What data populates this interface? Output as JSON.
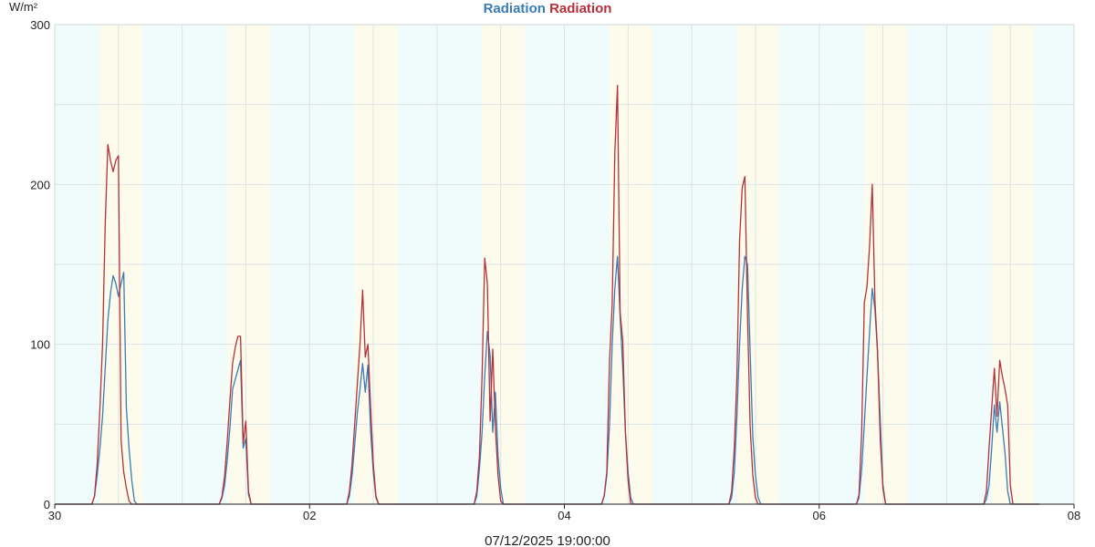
{
  "chart_data": {
    "type": "line",
    "title_parts": [
      {
        "text": "Radiation",
        "color": "#3b7bb5"
      },
      {
        "text": "Radiation",
        "color": "#b5313a"
      }
    ],
    "y_unit": "W/m²",
    "ylim": [
      0,
      300
    ],
    "y_ticks": [
      "0",
      "100",
      "200",
      "300"
    ],
    "x_ticks": [
      {
        "label": "30",
        "hour": 0
      },
      {
        "label": "02",
        "hour": 48
      },
      {
        "label": "04",
        "hour": 96
      },
      {
        "label": "06",
        "hour": 144
      },
      {
        "label": "08",
        "hour": 192
      }
    ],
    "xlim_hours": [
      0,
      192
    ],
    "footer_timestamp": "07/12/2025 19:00:00",
    "day_periods": [
      [
        17,
        33
      ],
      [
        65,
        81
      ],
      [
        113,
        129
      ],
      [
        161,
        177
      ],
      [
        209,
        225
      ],
      [
        257,
        273
      ],
      [
        305,
        321
      ],
      [
        353,
        369
      ]
    ],
    "grid": true,
    "series": [
      {
        "color": "#3b7bb5",
        "points": [
          [
            0,
            0
          ],
          [
            14,
            0
          ],
          [
            15,
            5
          ],
          [
            16,
            18
          ],
          [
            17,
            35
          ],
          [
            18,
            55
          ],
          [
            19,
            85
          ],
          [
            20,
            115
          ],
          [
            21,
            132
          ],
          [
            22,
            143
          ],
          [
            23,
            138
          ],
          [
            24,
            130
          ],
          [
            25,
            138
          ],
          [
            26,
            145
          ],
          [
            27,
            60
          ],
          [
            28,
            35
          ],
          [
            29,
            15
          ],
          [
            30,
            2
          ],
          [
            31,
            0
          ],
          [
            62,
            0
          ],
          [
            63,
            4
          ],
          [
            64,
            12
          ],
          [
            65,
            28
          ],
          [
            66,
            48
          ],
          [
            67,
            72
          ],
          [
            68,
            78
          ],
          [
            69,
            84
          ],
          [
            70,
            90
          ],
          [
            71,
            35
          ],
          [
            72,
            41
          ],
          [
            73,
            6
          ],
          [
            74,
            0
          ],
          [
            110,
            0
          ],
          [
            111,
            5
          ],
          [
            112,
            18
          ],
          [
            113,
            37
          ],
          [
            114,
            57
          ],
          [
            115,
            72
          ],
          [
            116,
            88
          ],
          [
            117,
            70
          ],
          [
            118,
            87
          ],
          [
            119,
            45
          ],
          [
            120,
            20
          ],
          [
            121,
            4
          ],
          [
            122,
            0
          ],
          [
            158,
            0
          ],
          [
            159,
            5
          ],
          [
            160,
            22
          ],
          [
            161,
            45
          ],
          [
            162,
            80
          ],
          [
            163,
            108
          ],
          [
            164,
            93
          ],
          [
            165,
            45
          ],
          [
            166,
            70
          ],
          [
            167,
            30
          ],
          [
            168,
            10
          ],
          [
            169,
            0
          ],
          [
            206,
            0
          ],
          [
            207,
            5
          ],
          [
            208,
            18
          ],
          [
            209,
            50
          ],
          [
            210,
            100
          ],
          [
            211,
            135
          ],
          [
            212,
            155
          ],
          [
            213,
            117
          ],
          [
            214,
            85
          ],
          [
            215,
            45
          ],
          [
            216,
            20
          ],
          [
            217,
            4
          ],
          [
            218,
            0
          ],
          [
            254,
            0
          ],
          [
            255,
            4
          ],
          [
            256,
            20
          ],
          [
            257,
            55
          ],
          [
            258,
            100
          ],
          [
            259,
            135
          ],
          [
            260,
            155
          ],
          [
            261,
            150
          ],
          [
            262,
            95
          ],
          [
            263,
            42
          ],
          [
            264,
            18
          ],
          [
            265,
            4
          ],
          [
            266,
            0
          ],
          [
            302,
            0
          ],
          [
            303,
            4
          ],
          [
            304,
            22
          ],
          [
            305,
            50
          ],
          [
            306,
            80
          ],
          [
            307,
            108
          ],
          [
            308,
            135
          ],
          [
            309,
            122
          ],
          [
            310,
            95
          ],
          [
            311,
            52
          ],
          [
            312,
            12
          ],
          [
            313,
            0
          ],
          [
            350,
            0
          ],
          [
            351,
            3
          ],
          [
            352,
            12
          ],
          [
            353,
            35
          ],
          [
            354,
            62
          ],
          [
            355,
            45
          ],
          [
            356,
            64
          ],
          [
            357,
            48
          ],
          [
            358,
            32
          ],
          [
            359,
            8
          ],
          [
            360,
            0
          ],
          [
            370,
            0
          ],
          [
            371,
            0
          ]
        ]
      },
      {
        "color": "#b5313a",
        "points": [
          [
            0,
            0
          ],
          [
            14,
            0
          ],
          [
            15,
            5
          ],
          [
            16,
            25
          ],
          [
            17,
            60
          ],
          [
            18,
            100
          ],
          [
            19,
            175
          ],
          [
            20,
            225
          ],
          [
            21,
            215
          ],
          [
            22,
            208
          ],
          [
            23,
            215
          ],
          [
            24,
            218
          ],
          [
            25,
            40
          ],
          [
            26,
            20
          ],
          [
            27,
            10
          ],
          [
            28,
            2
          ],
          [
            29,
            0
          ],
          [
            62,
            0
          ],
          [
            63,
            5
          ],
          [
            64,
            18
          ],
          [
            65,
            40
          ],
          [
            66,
            65
          ],
          [
            67,
            88
          ],
          [
            68,
            98
          ],
          [
            69,
            105
          ],
          [
            70,
            105
          ],
          [
            71,
            38
          ],
          [
            72,
            52
          ],
          [
            73,
            8
          ],
          [
            74,
            0
          ],
          [
            110,
            0
          ],
          [
            111,
            8
          ],
          [
            112,
            25
          ],
          [
            113,
            50
          ],
          [
            114,
            75
          ],
          [
            115,
            100
          ],
          [
            116,
            134
          ],
          [
            117,
            92
          ],
          [
            118,
            100
          ],
          [
            119,
            60
          ],
          [
            120,
            25
          ],
          [
            121,
            5
          ],
          [
            122,
            0
          ],
          [
            158,
            0
          ],
          [
            159,
            8
          ],
          [
            160,
            30
          ],
          [
            161,
            80
          ],
          [
            162,
            154
          ],
          [
            163,
            138
          ],
          [
            164,
            52
          ],
          [
            165,
            97
          ],
          [
            166,
            48
          ],
          [
            167,
            18
          ],
          [
            168,
            2
          ],
          [
            169,
            0
          ],
          [
            206,
            0
          ],
          [
            207,
            5
          ],
          [
            208,
            20
          ],
          [
            209,
            90
          ],
          [
            210,
            125
          ],
          [
            211,
            220
          ],
          [
            212,
            262
          ],
          [
            213,
            120
          ],
          [
            214,
            102
          ],
          [
            215,
            45
          ],
          [
            216,
            15
          ],
          [
            217,
            0
          ],
          [
            254,
            0
          ],
          [
            255,
            8
          ],
          [
            256,
            35
          ],
          [
            257,
            80
          ],
          [
            258,
            165
          ],
          [
            259,
            198
          ],
          [
            260,
            205
          ],
          [
            261,
            118
          ],
          [
            262,
            48
          ],
          [
            263,
            18
          ],
          [
            264,
            4
          ],
          [
            265,
            0
          ],
          [
            302,
            0
          ],
          [
            303,
            6
          ],
          [
            304,
            45
          ],
          [
            305,
            126
          ],
          [
            306,
            136
          ],
          [
            307,
            162
          ],
          [
            308,
            200
          ],
          [
            309,
            128
          ],
          [
            310,
            95
          ],
          [
            311,
            40
          ],
          [
            312,
            10
          ],
          [
            313,
            0
          ],
          [
            350,
            0
          ],
          [
            351,
            8
          ],
          [
            352,
            35
          ],
          [
            353,
            60
          ],
          [
            354,
            85
          ],
          [
            355,
            55
          ],
          [
            356,
            90
          ],
          [
            357,
            80
          ],
          [
            358,
            72
          ],
          [
            359,
            62
          ],
          [
            360,
            12
          ],
          [
            361,
            0
          ],
          [
            370,
            0
          ],
          [
            371,
            0
          ]
        ]
      }
    ]
  }
}
